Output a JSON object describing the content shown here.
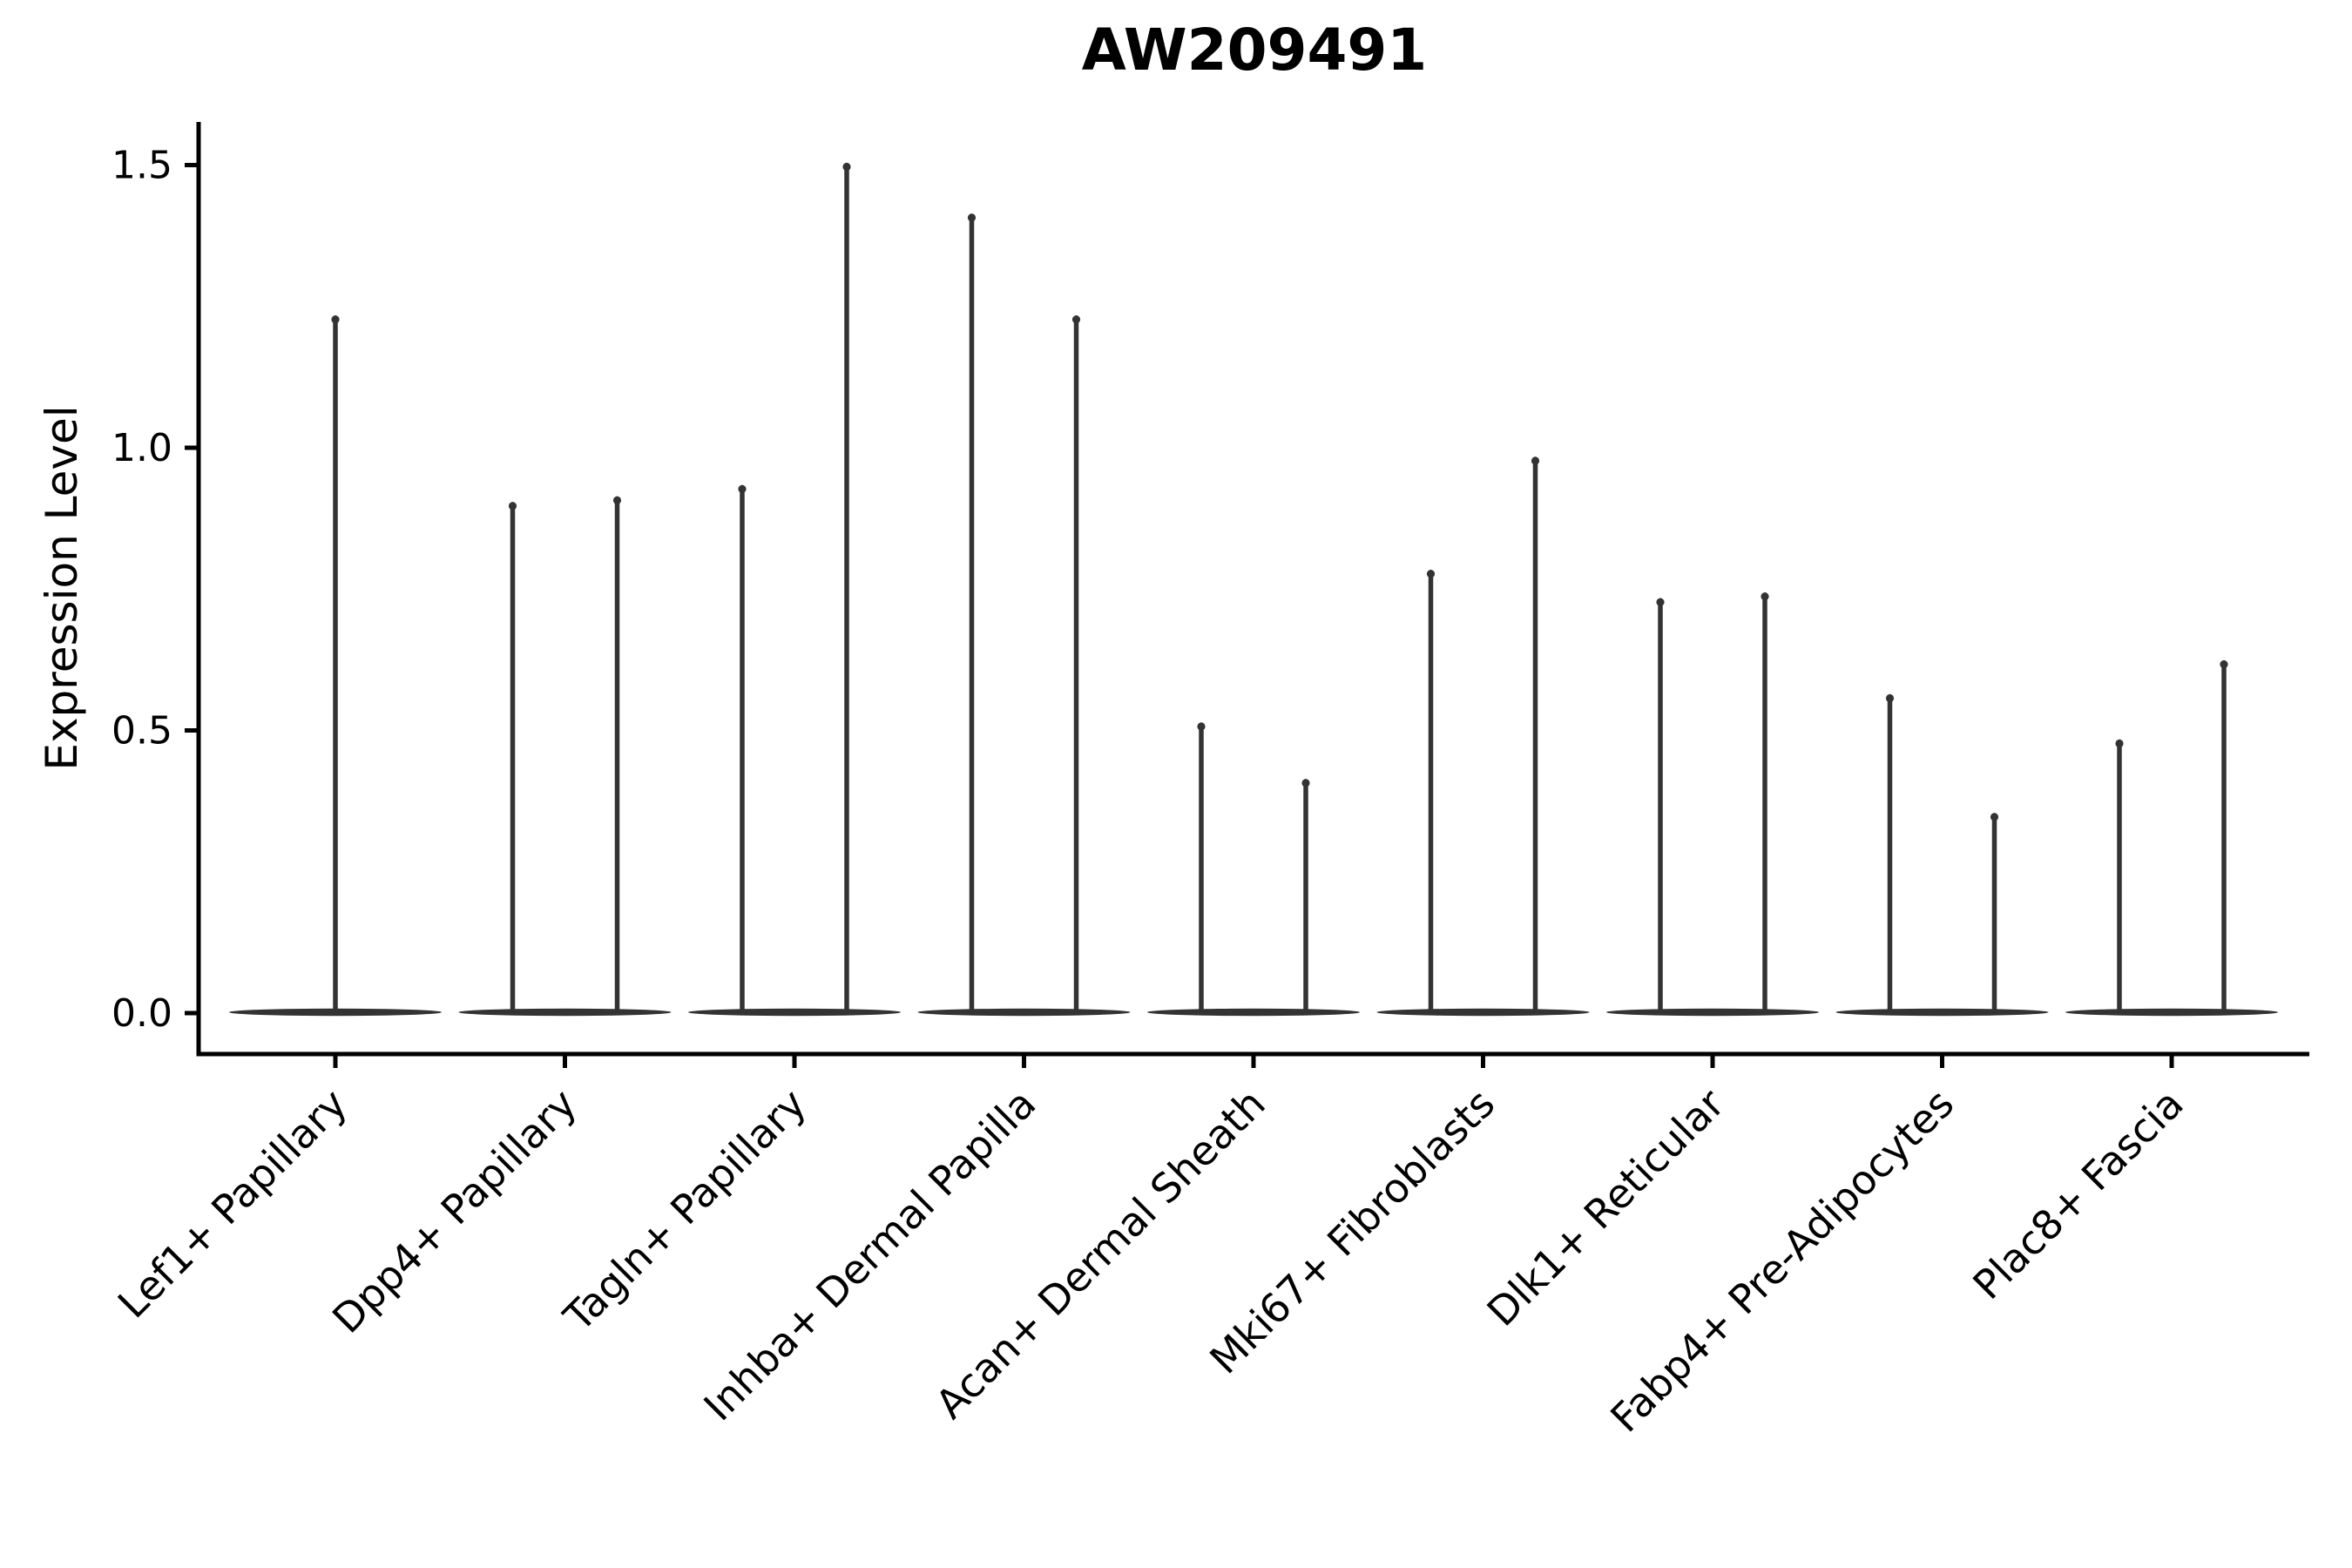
{
  "figure": {
    "background_color": "#ffffff"
  },
  "chart_data": {
    "type": "violin",
    "title": "AW209491",
    "ylabel": "Expression Level",
    "xlabel": "",
    "yticks": [
      "0.0",
      "0.5",
      "1.0",
      "1.5"
    ],
    "ylim": [
      -0.07,
      1.58
    ],
    "baseline_value": 0.0,
    "grid": false,
    "legend": "none",
    "violin_color": "#333333",
    "axis_color": "#000000",
    "violin_style": "flat-base-at-zero-with-thin-spike-to-max",
    "violins": [
      {
        "category": "Lef1+ Papillary",
        "maxima": [
          1.23
        ]
      },
      {
        "category": "Dpp4+ Papillary",
        "maxima": [
          0.9,
          0.91
        ]
      },
      {
        "category": "Tagln+ Papillary",
        "maxima": [
          0.93,
          1.5
        ]
      },
      {
        "category": "Inhba+ Dermal Papilla",
        "maxima": [
          1.41,
          1.23
        ]
      },
      {
        "category": "Acan+ Dermal Sheath",
        "maxima": [
          0.51,
          0.41
        ]
      },
      {
        "category": "Mki67+ Fibroblasts",
        "maxima": [
          0.78,
          0.98
        ]
      },
      {
        "category": "Dlk1+ Reticular",
        "maxima": [
          0.73,
          0.74
        ]
      },
      {
        "category": "Fabp4+ Pre-Adipocytes",
        "maxima": [
          0.56,
          0.35
        ]
      },
      {
        "category": "Plac8+ Fascia",
        "maxima": [
          0.48,
          0.62
        ]
      }
    ]
  }
}
